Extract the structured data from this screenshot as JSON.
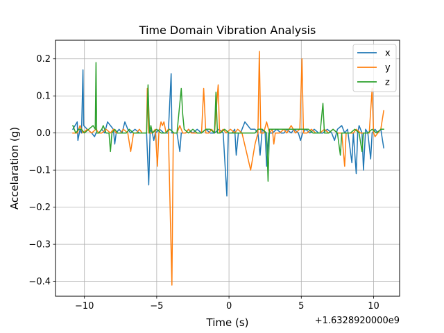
{
  "chart_data": {
    "type": "line",
    "title": "Time Domain Vibration Analysis",
    "xlabel": "Time (s)",
    "ylabel": "Accelaration (g)",
    "x_offset_label": "+1.6328920000e9",
    "xlim": [
      -12,
      11.8
    ],
    "ylim": [
      -0.44,
      0.25
    ],
    "xticks": [
      -10,
      -5,
      0,
      5,
      10
    ],
    "xtick_labels": [
      "−10",
      "−5",
      "0",
      "5",
      "10"
    ],
    "yticks": [
      -0.4,
      -0.3,
      -0.2,
      -0.1,
      0.0,
      0.1,
      0.2
    ],
    "ytick_labels": [
      "−0.4",
      "−0.3",
      "−0.2",
      "−0.1",
      "0.0",
      "0.1",
      "0.2"
    ],
    "grid": true,
    "legend_position": "top-right",
    "series": [
      {
        "name": "x",
        "color": "#1f77b4",
        "points": [
          [
            -10.8,
            0.01
          ],
          [
            -10.5,
            0.03
          ],
          [
            -10.45,
            -0.02
          ],
          [
            -10.3,
            0.01
          ],
          [
            -10.2,
            0.0
          ],
          [
            -10.1,
            0.17
          ],
          [
            -10.05,
            0.02
          ],
          [
            -9.8,
            0.01
          ],
          [
            -9.5,
            0.0
          ],
          [
            -9.3,
            -0.01
          ],
          [
            -9.2,
            0.0
          ],
          [
            -9.0,
            0.0
          ],
          [
            -8.8,
            0.01
          ],
          [
            -8.6,
            0.0
          ],
          [
            -8.4,
            0.03
          ],
          [
            -8.2,
            0.02
          ],
          [
            -8.0,
            0.01
          ],
          [
            -7.9,
            -0.03
          ],
          [
            -7.8,
            0.0
          ],
          [
            -7.6,
            0.01
          ],
          [
            -7.4,
            0.0
          ],
          [
            -7.2,
            0.03
          ],
          [
            -7.0,
            0.01
          ],
          [
            -6.8,
            0.0
          ],
          [
            -6.5,
            0.01
          ],
          [
            -6.2,
            0.0
          ],
          [
            -5.9,
            0.0
          ],
          [
            -5.7,
            0.0
          ],
          [
            -5.55,
            -0.14
          ],
          [
            -5.45,
            0.01
          ],
          [
            -5.3,
            0.0
          ],
          [
            -5.2,
            -0.02
          ],
          [
            -5.1,
            0.0
          ],
          [
            -4.8,
            0.01
          ],
          [
            -4.5,
            0.0
          ],
          [
            -4.2,
            0.0
          ],
          [
            -4.0,
            0.16
          ],
          [
            -3.95,
            0.0
          ],
          [
            -3.6,
            0.0
          ],
          [
            -3.4,
            -0.05
          ],
          [
            -3.3,
            0.0
          ],
          [
            -3.0,
            0.0
          ],
          [
            -2.8,
            0.01
          ],
          [
            -2.5,
            0.0
          ],
          [
            -2.2,
            0.01
          ],
          [
            -1.9,
            0.0
          ],
          [
            -1.6,
            0.01
          ],
          [
            -1.3,
            0.0
          ],
          [
            -1.0,
            0.0
          ],
          [
            -0.7,
            0.01
          ],
          [
            -0.4,
            0.0
          ],
          [
            -0.15,
            -0.17
          ],
          [
            -0.05,
            0.0
          ],
          [
            0.2,
            0.0
          ],
          [
            0.4,
            0.01
          ],
          [
            0.5,
            -0.06
          ],
          [
            0.65,
            0.0
          ],
          [
            0.8,
            0.0
          ],
          [
            1.1,
            0.03
          ],
          [
            1.3,
            0.02
          ],
          [
            1.5,
            0.01
          ],
          [
            1.8,
            0.01
          ],
          [
            2.0,
            0.0
          ],
          [
            2.15,
            -0.06
          ],
          [
            2.3,
            0.01
          ],
          [
            2.5,
            0.0
          ],
          [
            2.6,
            -0.09
          ],
          [
            2.75,
            0.0
          ],
          [
            3.0,
            0.0
          ],
          [
            3.3,
            0.01
          ],
          [
            3.6,
            0.0
          ],
          [
            3.8,
            0.0
          ],
          [
            4.0,
            0.01
          ],
          [
            4.3,
            0.0
          ],
          [
            4.5,
            0.01
          ],
          [
            4.8,
            0.0
          ],
          [
            4.95,
            -0.02
          ],
          [
            5.1,
            0.0
          ],
          [
            5.3,
            0.01
          ],
          [
            5.6,
            0.0
          ],
          [
            5.9,
            0.01
          ],
          [
            6.2,
            0.0
          ],
          [
            6.5,
            0.0
          ],
          [
            6.8,
            0.01
          ],
          [
            7.1,
            0.0
          ],
          [
            7.3,
            -0.02
          ],
          [
            7.5,
            0.01
          ],
          [
            7.8,
            0.02
          ],
          [
            8.0,
            0.0
          ],
          [
            8.2,
            0.01
          ],
          [
            8.5,
            -0.08
          ],
          [
            8.6,
            0.0
          ],
          [
            8.8,
            -0.11
          ],
          [
            8.9,
            0.0
          ],
          [
            9.0,
            0.02
          ],
          [
            9.2,
            0.0
          ],
          [
            9.3,
            -0.1
          ],
          [
            9.45,
            0.01
          ],
          [
            9.6,
            0.0
          ],
          [
            9.8,
            -0.07
          ],
          [
            9.9,
            0.0
          ],
          [
            10.1,
            0.01
          ],
          [
            10.3,
            0.0
          ],
          [
            10.5,
            0.01
          ],
          [
            10.7,
            -0.04
          ]
        ]
      },
      {
        "name": "y",
        "color": "#ff7f0e",
        "points": [
          [
            -10.8,
            0.0
          ],
          [
            -10.5,
            0.0
          ],
          [
            -10.3,
            0.02
          ],
          [
            -10.1,
            0.0
          ],
          [
            -9.8,
            0.01
          ],
          [
            -9.5,
            0.0
          ],
          [
            -9.2,
            0.01
          ],
          [
            -9.0,
            0.0
          ],
          [
            -8.8,
            0.0
          ],
          [
            -8.5,
            0.01
          ],
          [
            -8.2,
            0.0
          ],
          [
            -8.0,
            0.01
          ],
          [
            -7.8,
            0.0
          ],
          [
            -7.5,
            0.0
          ],
          [
            -7.3,
            0.01
          ],
          [
            -7.0,
            0.0
          ],
          [
            -6.8,
            -0.05
          ],
          [
            -6.6,
            0.0
          ],
          [
            -6.4,
            0.0
          ],
          [
            -6.2,
            0.01
          ],
          [
            -6.0,
            0.0
          ],
          [
            -5.7,
            0.0
          ],
          [
            -5.65,
            0.12
          ],
          [
            -5.55,
            0.0
          ],
          [
            -5.3,
            0.0
          ],
          [
            -5.1,
            0.01
          ],
          [
            -4.95,
            -0.09
          ],
          [
            -4.85,
            0.0
          ],
          [
            -4.7,
            0.03
          ],
          [
            -4.6,
            0.02
          ],
          [
            -4.5,
            0.03
          ],
          [
            -4.35,
            0.0
          ],
          [
            -4.2,
            0.01
          ],
          [
            -3.95,
            -0.41
          ],
          [
            -3.85,
            0.0
          ],
          [
            -3.6,
            0.0
          ],
          [
            -3.4,
            0.02
          ],
          [
            -3.2,
            0.0
          ],
          [
            -3.0,
            0.0
          ],
          [
            -2.8,
            0.01
          ],
          [
            -2.6,
            0.0
          ],
          [
            -2.4,
            0.0
          ],
          [
            -2.2,
            0.0
          ],
          [
            -1.9,
            0.0
          ],
          [
            -1.75,
            0.12
          ],
          [
            -1.6,
            0.0
          ],
          [
            -1.4,
            0.0
          ],
          [
            -1.2,
            0.01
          ],
          [
            -1.0,
            0.0
          ],
          [
            -0.75,
            0.13
          ],
          [
            -0.65,
            0.0
          ],
          [
            -0.4,
            0.01
          ],
          [
            -0.2,
            0.0
          ],
          [
            0.1,
            0.01
          ],
          [
            0.4,
            0.0
          ],
          [
            0.6,
            0.01
          ],
          [
            0.9,
            0.0
          ],
          [
            1.2,
            -0.05
          ],
          [
            1.5,
            -0.1
          ],
          [
            1.8,
            -0.03
          ],
          [
            2.0,
            0.0
          ],
          [
            2.1,
            0.22
          ],
          [
            2.2,
            0.0
          ],
          [
            2.4,
            0.0
          ],
          [
            2.6,
            0.03
          ],
          [
            2.8,
            0.0
          ],
          [
            3.0,
            0.01
          ],
          [
            3.1,
            -0.03
          ],
          [
            3.2,
            0.0
          ],
          [
            3.5,
            0.0
          ],
          [
            3.8,
            0.01
          ],
          [
            4.0,
            0.0
          ],
          [
            4.3,
            0.02
          ],
          [
            4.6,
            0.0
          ],
          [
            4.9,
            0.01
          ],
          [
            5.05,
            0.2
          ],
          [
            5.15,
            0.0
          ],
          [
            5.4,
            0.0
          ],
          [
            5.7,
            0.01
          ],
          [
            6.0,
            0.0
          ],
          [
            6.3,
            0.0
          ],
          [
            6.6,
            0.01
          ],
          [
            6.9,
            0.0
          ],
          [
            7.2,
            0.01
          ],
          [
            7.5,
            0.0
          ],
          [
            7.8,
            0.0
          ],
          [
            8.0,
            -0.09
          ],
          [
            8.1,
            0.0
          ],
          [
            8.3,
            0.0
          ],
          [
            8.6,
            0.0
          ],
          [
            8.8,
            0.01
          ],
          [
            9.1,
            0.0
          ],
          [
            9.4,
            0.0
          ],
          [
            9.7,
            0.0
          ],
          [
            9.9,
            0.12
          ],
          [
            10.0,
            0.0
          ],
          [
            10.1,
            -0.01
          ],
          [
            10.3,
            0.0
          ],
          [
            10.5,
            0.01
          ],
          [
            10.7,
            0.06
          ]
        ]
      },
      {
        "name": "z",
        "color": "#2ca02c",
        "points": [
          [
            -10.8,
            0.02
          ],
          [
            -10.6,
            0.0
          ],
          [
            -10.4,
            0.01
          ],
          [
            -10.2,
            0.01
          ],
          [
            -10.0,
            0.0
          ],
          [
            -9.7,
            0.01
          ],
          [
            -9.4,
            0.02
          ],
          [
            -9.25,
            0.01
          ],
          [
            -9.2,
            0.19
          ],
          [
            -9.15,
            0.0
          ],
          [
            -9.0,
            0.0
          ],
          [
            -8.8,
            0.01
          ],
          [
            -8.7,
            0.02
          ],
          [
            -8.5,
            0.0
          ],
          [
            -8.3,
            0.0
          ],
          [
            -8.2,
            -0.05
          ],
          [
            -8.1,
            0.0
          ],
          [
            -7.9,
            0.01
          ],
          [
            -7.7,
            0.0
          ],
          [
            -7.4,
            0.0
          ],
          [
            -7.1,
            0.0
          ],
          [
            -6.9,
            0.01
          ],
          [
            -6.6,
            0.0
          ],
          [
            -6.3,
            0.0
          ],
          [
            -6.0,
            0.0
          ],
          [
            -5.7,
            0.0
          ],
          [
            -5.6,
            0.13
          ],
          [
            -5.5,
            0.0
          ],
          [
            -5.4,
            0.02
          ],
          [
            -5.3,
            0.0
          ],
          [
            -5.0,
            0.01
          ],
          [
            -4.7,
            0.0
          ],
          [
            -4.4,
            0.0
          ],
          [
            -4.1,
            0.01
          ],
          [
            -3.8,
            0.0
          ],
          [
            -3.6,
            0.0
          ],
          [
            -3.3,
            0.12
          ],
          [
            -3.2,
            0.05
          ],
          [
            -3.1,
            0.01
          ],
          [
            -2.8,
            0.0
          ],
          [
            -2.5,
            0.01
          ],
          [
            -2.2,
            0.0
          ],
          [
            -1.9,
            0.0
          ],
          [
            -1.6,
            0.01
          ],
          [
            -1.3,
            0.01
          ],
          [
            -1.0,
            0.0
          ],
          [
            -0.9,
            0.11
          ],
          [
            -0.8,
            0.0
          ],
          [
            -0.6,
            0.0
          ],
          [
            -0.3,
            0.01
          ],
          [
            0.0,
            0.0
          ],
          [
            0.3,
            0.0
          ],
          [
            0.6,
            0.0
          ],
          [
            0.9,
            0.0
          ],
          [
            1.2,
            0.0
          ],
          [
            1.5,
            0.0
          ],
          [
            1.8,
            0.0
          ],
          [
            2.0,
            0.01
          ],
          [
            2.3,
            0.01
          ],
          [
            2.6,
            0.0
          ],
          [
            2.7,
            -0.13
          ],
          [
            2.8,
            0.01
          ],
          [
            3.1,
            0.01
          ],
          [
            3.4,
            0.01
          ],
          [
            3.7,
            0.01
          ],
          [
            4.0,
            0.01
          ],
          [
            4.3,
            0.01
          ],
          [
            4.6,
            0.01
          ],
          [
            4.9,
            0.01
          ],
          [
            5.2,
            0.01
          ],
          [
            5.5,
            0.01
          ],
          [
            5.8,
            0.0
          ],
          [
            6.1,
            0.0
          ],
          [
            6.3,
            0.0
          ],
          [
            6.5,
            0.08
          ],
          [
            6.6,
            0.0
          ],
          [
            6.9,
            0.0
          ],
          [
            7.2,
            0.01
          ],
          [
            7.5,
            0.0
          ],
          [
            7.7,
            -0.06
          ],
          [
            7.8,
            0.0
          ],
          [
            8.1,
            0.0
          ],
          [
            8.4,
            0.0
          ],
          [
            8.7,
            0.01
          ],
          [
            9.0,
            0.0
          ],
          [
            9.2,
            -0.05
          ],
          [
            9.3,
            0.0
          ],
          [
            9.6,
            0.0
          ],
          [
            9.9,
            0.01
          ],
          [
            10.2,
            0.0
          ],
          [
            10.5,
            0.01
          ],
          [
            10.7,
            0.01
          ]
        ]
      }
    ]
  }
}
